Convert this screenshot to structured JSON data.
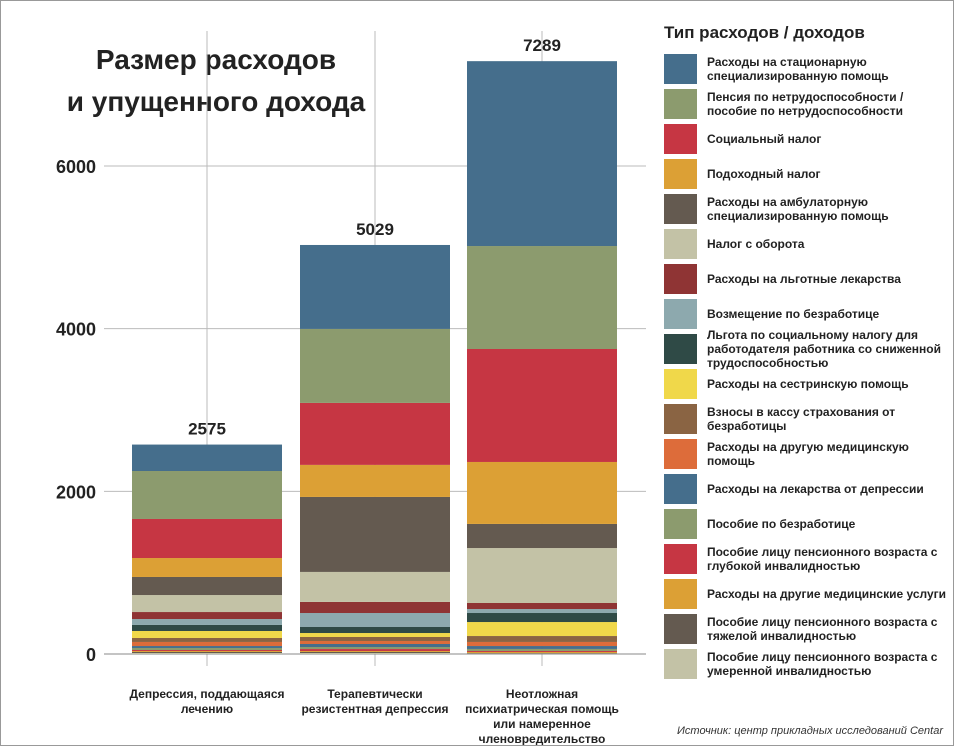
{
  "chart_data": {
    "type": "stacked_bar",
    "title": [
      "Размер расходов",
      "и упущенного дохода"
    ],
    "legend_title": "Тип расходов / доходов",
    "source": "Источник: центр прикладных исследований Centar",
    "categories": [
      "Депрессия, поддающаяся лечению",
      "Терапевтически резистентная депрессия",
      "Неотложная психиатрическая помощь или намеренное членовредительство"
    ],
    "totals": [
      2575,
      5029,
      7289
    ],
    "ylim": [
      0,
      7500
    ],
    "yticks": [
      0,
      2000,
      4000,
      6000
    ],
    "grid": true,
    "series": [
      {
        "name": "Расходы на стационарную специализированную помощь",
        "color": "#456e8c",
        "values": [
          325,
          1032,
          2273
        ]
      },
      {
        "name": "Пенсия по нетрудоспособности / пособие по нетрудоспособности",
        "color": "#8c9b6e",
        "values": [
          590,
          910,
          1266
        ]
      },
      {
        "name": "Социальный налог",
        "color": "#c63643",
        "values": [
          480,
          762,
          1389
        ]
      },
      {
        "name": "Подоходный налог",
        "color": "#dca035",
        "values": [
          233,
          394,
          762
        ]
      },
      {
        "name": "Расходы на амбулаторную специализированную помощь",
        "color": "#645a50",
        "values": [
          222,
          922,
          296
        ]
      },
      {
        "name": "Налог с оборота",
        "color": "#c3c2a6",
        "values": [
          209,
          369,
          676
        ]
      },
      {
        "name": "Расходы на льготные лекарства",
        "color": "#8f3434",
        "values": [
          86,
          136,
          74
        ]
      },
      {
        "name": "Возмещение по безработице",
        "color": "#8da9ae",
        "values": [
          73,
          172,
          49
        ]
      },
      {
        "name": "Льгота по социальному налогу для работодателя работника со сниженной трудоспособностью",
        "color": "#2f4a46",
        "values": [
          74,
          74,
          111
        ]
      },
      {
        "name": "Расходы на сестринскую помощь",
        "color": "#f0d84a",
        "values": [
          86,
          49,
          172
        ]
      },
      {
        "name": "Взносы в кассу страхования от безработицы",
        "color": "#8a6443",
        "values": [
          49,
          49,
          73
        ]
      },
      {
        "name": "Расходы на другую медицинскую помощь",
        "color": "#dd6c3a",
        "values": [
          50,
          37,
          50
        ]
      },
      {
        "name": "Расходы на лекарства от депрессии",
        "color": "#456e8c",
        "values": [
          24,
          37,
          36
        ]
      },
      {
        "name": "Пособие по безработице",
        "color": "#8c9b6e",
        "values": [
          25,
          25,
          25
        ]
      },
      {
        "name": "Пособие лицу пенсионного возраста с глубокой инвалидностью",
        "color": "#c63643",
        "values": [
          12,
          24,
          12
        ]
      },
      {
        "name": "Расходы на другие медицинские услуги",
        "color": "#dca035",
        "values": [
          12,
          12,
          13
        ]
      },
      {
        "name": "Пособие лицу пенсионного возраста с тяжелой инвалидностью",
        "color": "#645a50",
        "values": [
          13,
          13,
          6
        ]
      },
      {
        "name": "Пособие лицу пенсионного возраста с умеренной инвалидностью",
        "color": "#c3c2a6",
        "values": [
          12,
          12,
          6
        ]
      }
    ]
  }
}
